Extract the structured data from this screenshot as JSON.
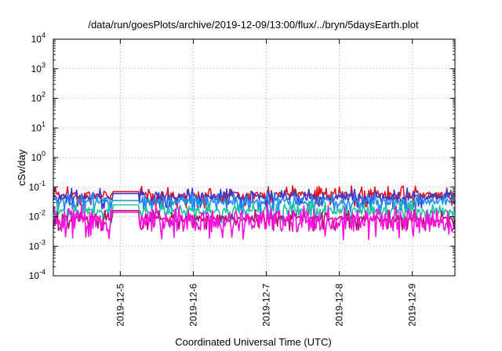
{
  "chart_data": {
    "type": "line",
    "title": "/data/run/goesPlots/archive/2019-12-09/13:00/flux/../bryn/5daysEarth.plot",
    "xlabel": "Coordinated Universal Time (UTC)",
    "ylabel": "cSv/day",
    "yscale": "log",
    "ylim": [
      0.0001,
      10000
    ],
    "xlim": [
      "2019-12-04 02:00",
      "2019-12-09 14:00"
    ],
    "grid": true,
    "legend": "none",
    "y_ticks": [
      {
        "base": "10",
        "exp": "-4",
        "value": 0.0001
      },
      {
        "base": "10",
        "exp": "-3",
        "value": 0.001
      },
      {
        "base": "10",
        "exp": "-2",
        "value": 0.01
      },
      {
        "base": "10",
        "exp": "-1",
        "value": 0.1
      },
      {
        "base": "10",
        "exp": "0",
        "value": 1
      },
      {
        "base": "10",
        "exp": "1",
        "value": 10
      },
      {
        "base": "10",
        "exp": "2",
        "value": 100
      },
      {
        "base": "10",
        "exp": "3",
        "value": 1000
      },
      {
        "base": "10",
        "exp": "4",
        "value": 10000
      }
    ],
    "x_ticks": [
      "2019-12-5",
      "2019-12-6",
      "2019-12-7",
      "2019-12-8",
      "2019-12-9"
    ],
    "series": [
      {
        "color": "#e8101a",
        "base": 0.052,
        "noise": 0.25,
        "plateau": 0.07,
        "seed": 11
      },
      {
        "color": "#3a3ad0",
        "base": 0.045,
        "noise": 0.22,
        "plateau": 0.06,
        "seed": 23
      },
      {
        "color": "#1e8ef0",
        "base": 0.032,
        "noise": 0.22,
        "plateau": 0.035,
        "seed": 37
      },
      {
        "color": "#19c6a0",
        "base": 0.015,
        "noise": 0.25,
        "plateau": 0.025,
        "seed": 41
      },
      {
        "color": "#b0106a",
        "base": 0.0085,
        "noise": 0.2,
        "plateau": 0.016,
        "seed": 53
      },
      {
        "color": "#ff10e0",
        "base": 0.0075,
        "noise": 0.75,
        "plateau": 0.014,
        "seed": 67
      }
    ],
    "plateau_range": [
      "2019-12-04 21:30",
      "2019-12-05 06:00"
    ]
  }
}
